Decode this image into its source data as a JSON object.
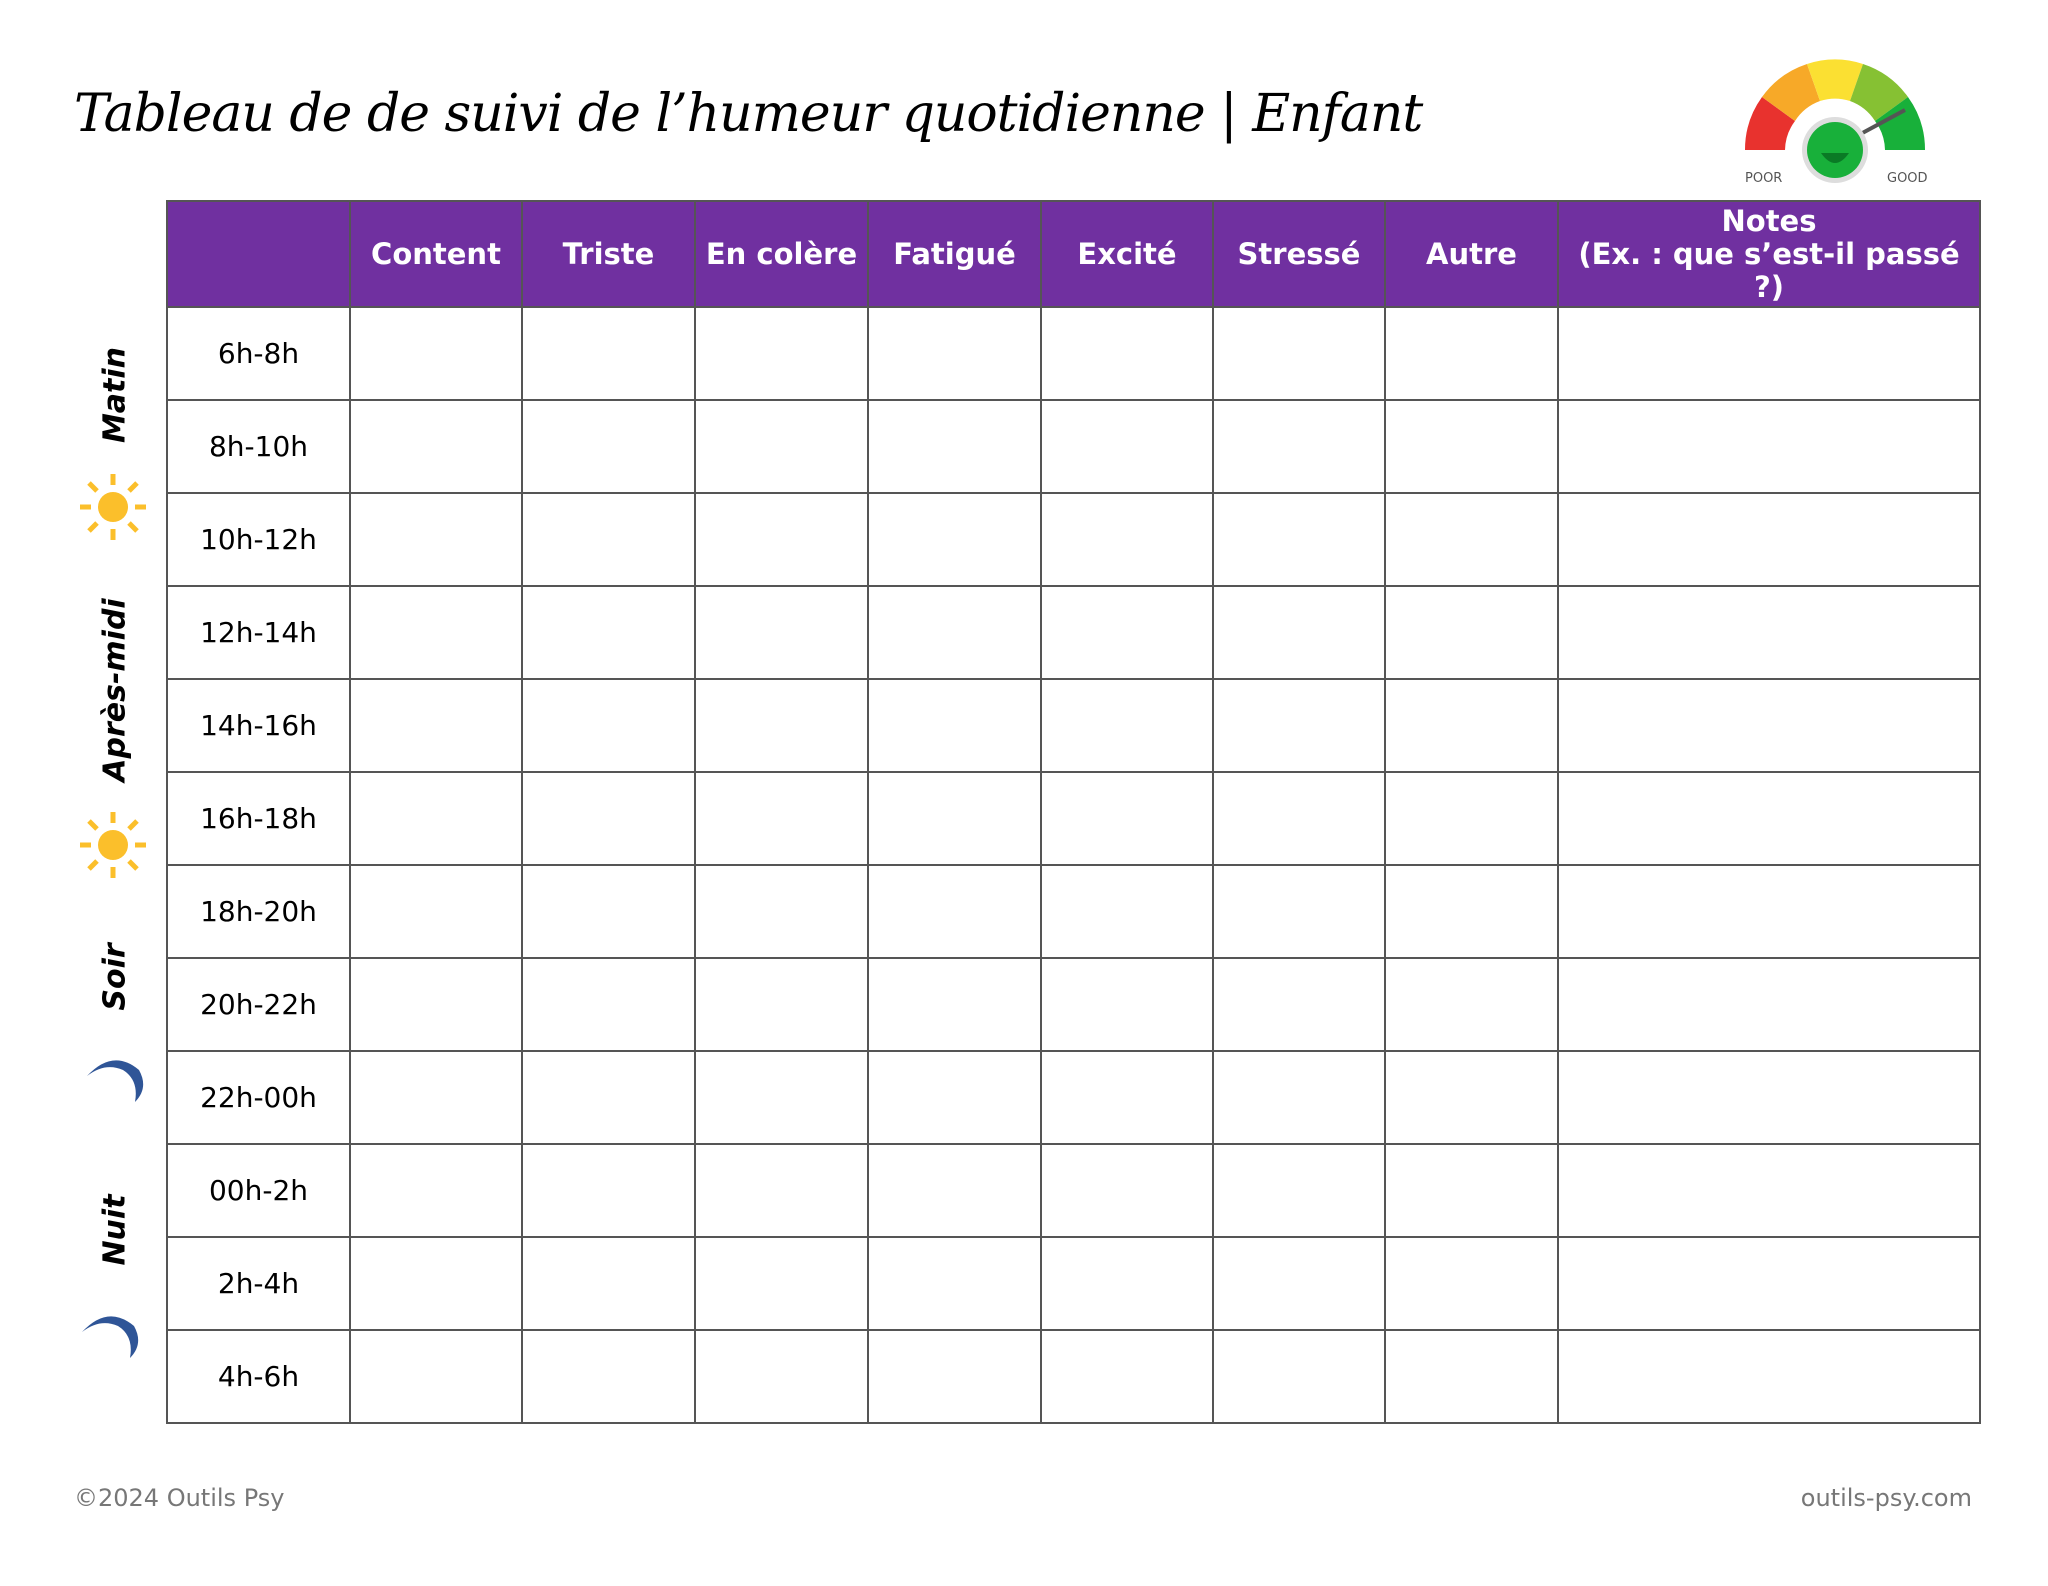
{
  "title": "Tableau de de suivi de l’humeur quotidienne | Enfant",
  "gauge": {
    "left_label": "POOR",
    "right_label": "GOOD",
    "colors": [
      "#e8322e",
      "#f7a928",
      "#fbe032",
      "#86c133",
      "#18b03a"
    ]
  },
  "table": {
    "headers": [
      "",
      "Content",
      "Triste",
      "En colère",
      "Fatigué",
      "Excité",
      "Stressé",
      "Autre",
      "Notes"
    ],
    "notes_subheader": "(Ex. : que s’est-il passé ?)",
    "rows": [
      "6h-8h",
      "8h-10h",
      "10h-12h",
      "12h-14h",
      "14h-16h",
      "16h-18h",
      "18h-20h",
      "20h-22h",
      "22h-00h",
      "00h-2h",
      "2h-4h",
      "4h-6h"
    ]
  },
  "periods": [
    {
      "label": "Matin",
      "icon": "sun-icon"
    },
    {
      "label": "Après-midi",
      "icon": "sun-icon"
    },
    {
      "label": "Soir",
      "icon": "moon-icon"
    },
    {
      "label": "Nuit",
      "icon": "moon-icon"
    }
  ],
  "colors": {
    "header": "#7030a0",
    "sun": "#fbbf2b",
    "moon": "#2f5597"
  },
  "footer": {
    "left": "©2024 Outils Psy",
    "right": "outils-psy.com"
  }
}
